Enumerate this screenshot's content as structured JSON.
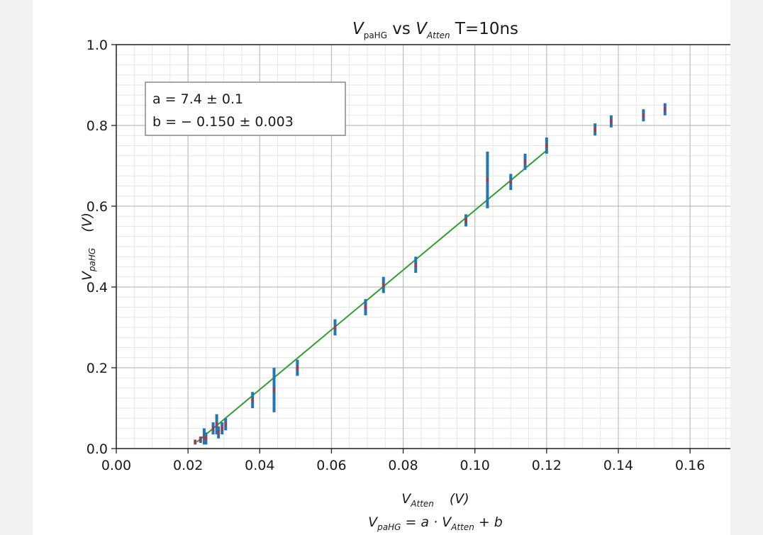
{
  "chart_data": {
    "type": "scatter",
    "title_parts": [
      "V",
      "paHG",
      " vs ",
      "V",
      "Atten",
      " T=10ns"
    ],
    "xlabel_parts": [
      "V",
      "Atten",
      "(V)"
    ],
    "xlabel_formula_parts": [
      "V",
      "paHG",
      " = a · ",
      "V",
      "Atten",
      " + b"
    ],
    "ylabel_parts": [
      "V",
      "paHG",
      "(V)"
    ],
    "xlim": [
      0.0,
      0.175
    ],
    "ylim": [
      0.0,
      1.0
    ],
    "xticks": [
      "0.00",
      "0.02",
      "0.04",
      "0.06",
      "0.08",
      "0.10",
      "0.12",
      "0.14",
      "0.16"
    ],
    "yticks": [
      "0.0",
      "0.2",
      "0.4",
      "0.6",
      "0.8",
      "1.0"
    ],
    "grid": true,
    "legend_placement": "top-left",
    "fit_box_lines": [
      "a = 7.4 ± 0.1",
      "b = − 0.150 ± 0.003"
    ],
    "fit": {
      "a": 7.4,
      "b": -0.15,
      "x_range": [
        0.0225,
        0.12
      ],
      "color": "#2ca02c"
    },
    "series": [
      {
        "point_color": "#d62728",
        "errorbar_color": "#1f77b4",
        "points": [
          {
            "x": 0.022,
            "y": 0.016,
            "err": 0.006
          },
          {
            "x": 0.0235,
            "y": 0.022,
            "err": 0.008
          },
          {
            "x": 0.0245,
            "y": 0.03,
            "err": 0.02
          },
          {
            "x": 0.025,
            "y": 0.025,
            "err": 0.015
          },
          {
            "x": 0.027,
            "y": 0.05,
            "err": 0.015
          },
          {
            "x": 0.028,
            "y": 0.06,
            "err": 0.025
          },
          {
            "x": 0.0285,
            "y": 0.04,
            "err": 0.015
          },
          {
            "x": 0.0295,
            "y": 0.05,
            "err": 0.015
          },
          {
            "x": 0.0305,
            "y": 0.06,
            "err": 0.015
          },
          {
            "x": 0.038,
            "y": 0.12,
            "err": 0.02
          },
          {
            "x": 0.044,
            "y": 0.145,
            "err": 0.055
          },
          {
            "x": 0.0505,
            "y": 0.2,
            "err": 0.02
          },
          {
            "x": 0.061,
            "y": 0.3,
            "err": 0.02
          },
          {
            "x": 0.0695,
            "y": 0.35,
            "err": 0.02
          },
          {
            "x": 0.0745,
            "y": 0.405,
            "err": 0.02
          },
          {
            "x": 0.0835,
            "y": 0.455,
            "err": 0.02
          },
          {
            "x": 0.0975,
            "y": 0.565,
            "err": 0.015
          },
          {
            "x": 0.1035,
            "y": 0.665,
            "err": 0.07
          },
          {
            "x": 0.11,
            "y": 0.66,
            "err": 0.02
          },
          {
            "x": 0.114,
            "y": 0.71,
            "err": 0.02
          },
          {
            "x": 0.12,
            "y": 0.75,
            "err": 0.02
          },
          {
            "x": 0.1335,
            "y": 0.79,
            "err": 0.015
          },
          {
            "x": 0.138,
            "y": 0.81,
            "err": 0.015
          },
          {
            "x": 0.147,
            "y": 0.825,
            "err": 0.015
          },
          {
            "x": 0.153,
            "y": 0.84,
            "err": 0.015
          }
        ]
      }
    ]
  }
}
